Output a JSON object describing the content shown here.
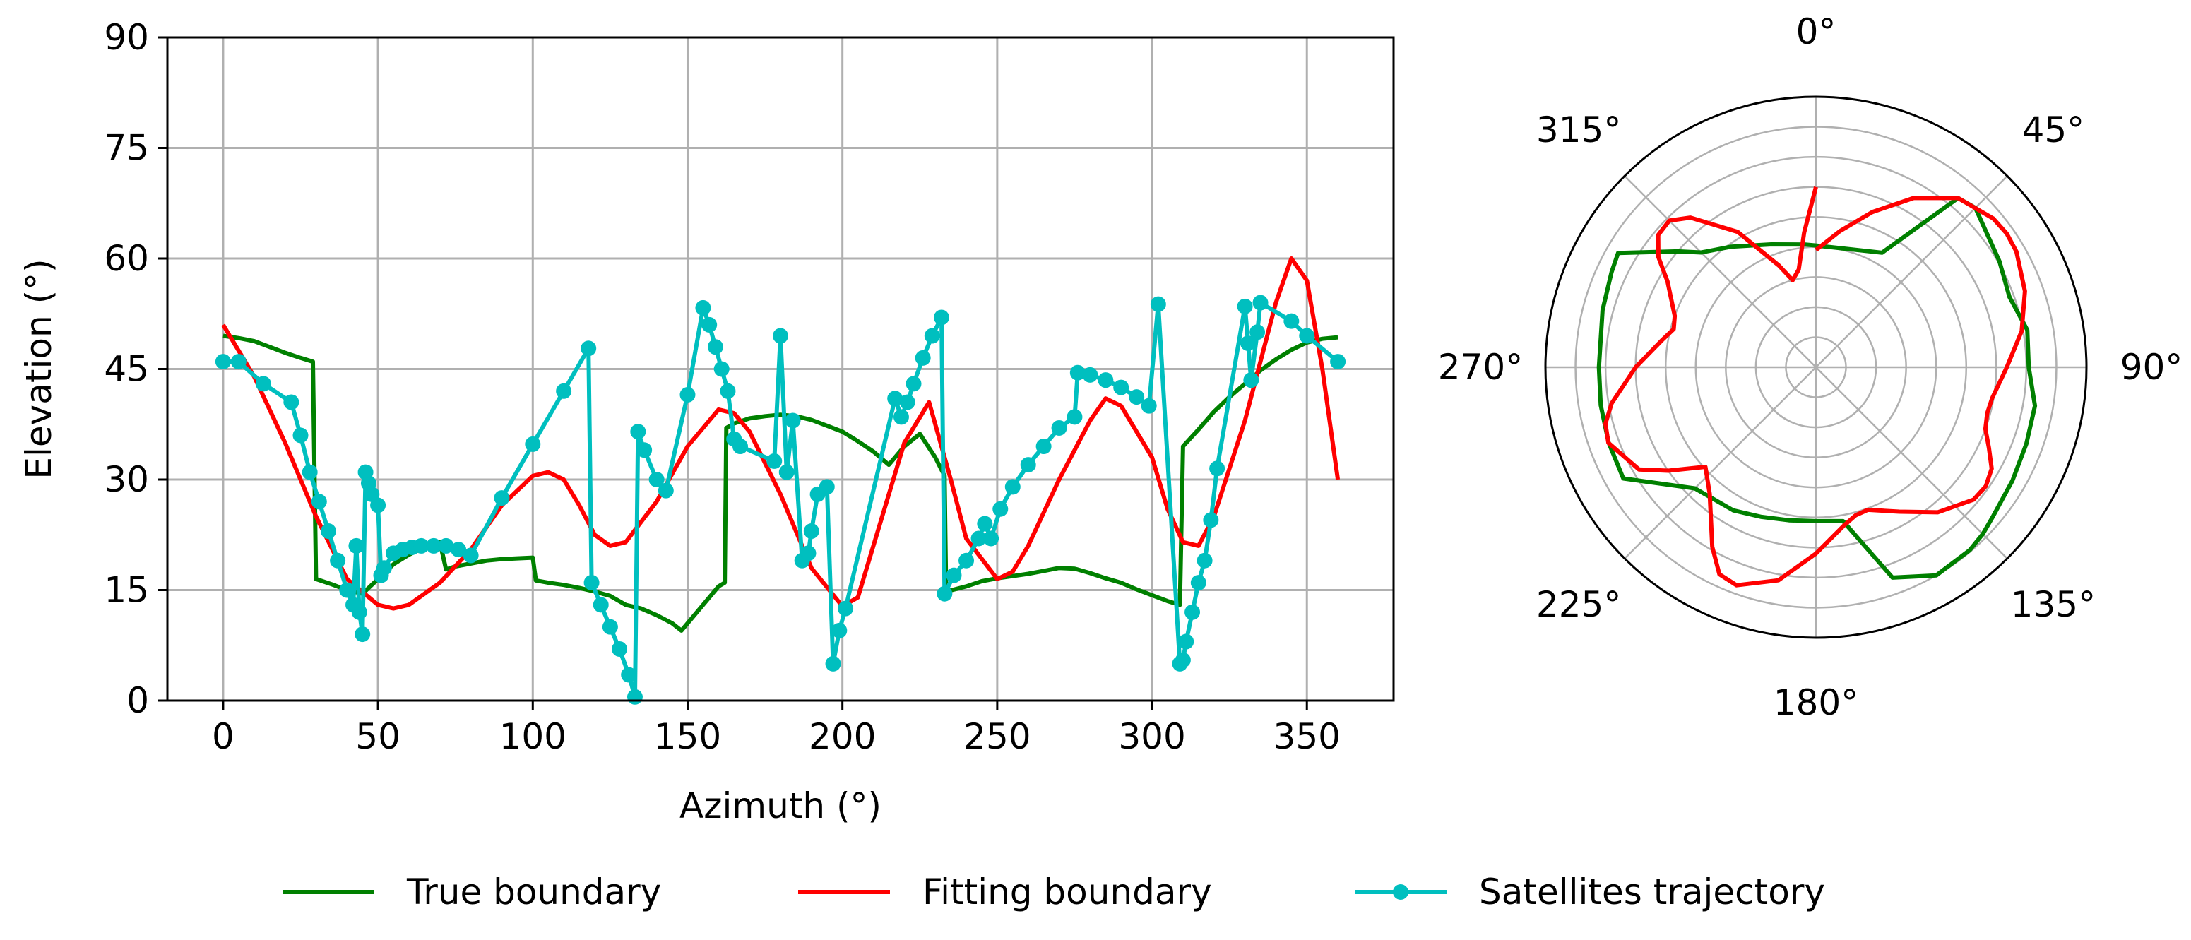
{
  "colors": {
    "true_boundary": "#008000",
    "fitting_boundary": "#ff0000",
    "satellites_trajectory": "#00bfbf",
    "grid": "#b0b0b0",
    "axes": "#000000"
  },
  "legend": {
    "placement": "bottom-center",
    "items": [
      {
        "label": "True boundary",
        "series": "true_boundary"
      },
      {
        "label": "Fitting boundary",
        "series": "fitting_boundary"
      },
      {
        "label": "Satellites trajectory",
        "series": "satellites_trajectory"
      }
    ]
  },
  "chart_data": [
    {
      "type": "line",
      "xlabel": "Azimuth (°)",
      "ylabel": "Elevation (°)",
      "xlim": [
        -18,
        378
      ],
      "ylim": [
        0,
        90
      ],
      "grid": true,
      "x_ticks": [
        0,
        50,
        100,
        150,
        200,
        250,
        300,
        350
      ],
      "x_tick_labels": [
        "0",
        "50",
        "100",
        "150",
        "200",
        "250",
        "300",
        "350"
      ],
      "y_ticks": [
        0,
        15,
        30,
        45,
        60,
        75,
        90
      ],
      "y_tick_labels": [
        "0",
        "15",
        "30",
        "45",
        "60",
        "75",
        "90"
      ],
      "series": [
        {
          "key": "true_boundary",
          "name": "True boundary",
          "x": [
            0,
            5,
            10,
            15,
            20,
            25,
            29,
            30,
            35,
            40,
            45,
            50,
            55,
            60,
            65,
            70,
            72,
            75,
            80,
            85,
            90,
            95,
            100,
            101,
            105,
            110,
            115,
            120,
            125,
            130,
            135,
            140,
            145,
            148,
            150,
            155,
            160,
            162,
            162.5,
            165,
            170,
            175,
            180,
            185,
            190,
            195,
            200,
            205,
            210,
            215,
            220,
            225,
            230,
            233,
            233.5,
            240,
            245,
            250,
            255,
            260,
            265,
            270,
            275,
            280,
            285,
            290,
            295,
            300,
            305,
            309,
            310,
            315,
            320,
            325,
            330,
            335,
            340,
            345,
            350,
            355,
            360
          ],
          "y": [
            49.5,
            49.2,
            48.8,
            48,
            47.2,
            46.5,
            46,
            16.5,
            15.8,
            15,
            14.5,
            16.5,
            18.5,
            19.8,
            20.8,
            21.5,
            17.8,
            18.2,
            18.6,
            19,
            19.2,
            19.3,
            19.4,
            16.3,
            16,
            15.7,
            15.3,
            14.8,
            14.2,
            13,
            12.5,
            11.6,
            10.5,
            9.5,
            10.5,
            13,
            15.5,
            16,
            37,
            37.6,
            38.3,
            38.6,
            38.8,
            38.6,
            38.1,
            37.3,
            36.5,
            35.2,
            33.8,
            32,
            34.5,
            36.2,
            33,
            30.5,
            14.8,
            15.5,
            16.2,
            16.6,
            16.9,
            17.2,
            17.6,
            18,
            17.9,
            17.3,
            16.6,
            16,
            15.1,
            14.3,
            13.5,
            13,
            34.5,
            36.8,
            39.2,
            41.2,
            43,
            44.8,
            46.3,
            47.6,
            48.6,
            49.1,
            49.3
          ]
        },
        {
          "key": "fitting_boundary",
          "name": "Fitting boundary",
          "x": [
            0,
            10,
            20,
            30,
            40,
            50,
            55,
            60,
            70,
            80,
            90,
            100,
            105,
            110,
            115,
            120,
            125,
            130,
            140,
            150,
            160,
            165,
            170,
            180,
            190,
            200,
            205,
            210,
            220,
            228,
            235,
            240,
            250,
            255,
            260,
            270,
            280,
            285,
            290,
            300,
            305,
            310,
            315,
            320,
            330,
            340,
            345,
            350,
            355,
            360
          ],
          "y": [
            51,
            44,
            35,
            25,
            16.5,
            13,
            12.5,
            13,
            16,
            20.5,
            26.5,
            30.5,
            31,
            30,
            26.5,
            22.5,
            21,
            21.5,
            27,
            34.5,
            39.5,
            39,
            36.5,
            28,
            18,
            12.8,
            14,
            21,
            35,
            40.5,
            30,
            22,
            16.5,
            17.5,
            21,
            30,
            38,
            41,
            40,
            33,
            26,
            21.5,
            21,
            25,
            38,
            54,
            60,
            57,
            45,
            30
          ]
        },
        {
          "key": "satellites_trajectory",
          "name": "Satellites trajectory",
          "markers": true,
          "x": [
            0,
            5,
            13,
            22,
            25,
            28,
            31,
            34,
            37,
            40,
            42,
            43,
            44,
            45,
            46,
            47,
            48,
            50,
            51,
            52,
            55,
            58,
            61,
            64,
            68,
            72,
            76,
            80,
            90,
            100,
            110,
            118,
            119,
            122,
            125,
            128,
            131,
            133,
            134,
            136,
            140,
            143,
            150,
            155,
            157,
            159,
            161,
            163,
            165,
            167,
            178,
            180,
            182,
            184,
            187,
            189,
            190,
            192,
            195,
            197,
            199,
            201,
            217,
            219,
            221,
            223,
            226,
            229,
            232,
            233,
            236,
            240,
            244,
            246,
            248,
            251,
            255,
            260,
            265,
            270,
            275,
            276,
            280,
            285,
            290,
            295,
            299,
            302,
            309,
            310,
            311,
            313,
            315,
            317,
            319,
            321,
            330,
            331,
            332,
            334,
            335,
            345,
            350,
            360
          ],
          "y": [
            46,
            46,
            43,
            40.5,
            36,
            31,
            27,
            23,
            19,
            15,
            13,
            21,
            12,
            9,
            31,
            29.5,
            28,
            26.5,
            17,
            18,
            20,
            20.5,
            20.8,
            21,
            21,
            21,
            20.5,
            19.7,
            27.5,
            34.8,
            42,
            47.8,
            16,
            13,
            10,
            7,
            3.5,
            0.5,
            36.5,
            34,
            30,
            28.5,
            41.5,
            53.3,
            51,
            48,
            45,
            42,
            35.5,
            34.5,
            32.5,
            49.5,
            31,
            38,
            19,
            20,
            23,
            28,
            29,
            5,
            9.5,
            12.5,
            41,
            38.5,
            40.5,
            43,
            46.5,
            49.5,
            52,
            14.5,
            17,
            19,
            22,
            24,
            22,
            26,
            29,
            32,
            34.5,
            37,
            38.5,
            44.5,
            44.2,
            43.5,
            42.5,
            41.2,
            40,
            53.8,
            5,
            5.5,
            8,
            12,
            16,
            19,
            24.5,
            31.5,
            53.5,
            48.5,
            43.5,
            50,
            54,
            51.5,
            49.5,
            46
          ]
        }
      ]
    },
    {
      "type": "polar-line",
      "theta_ticks": [
        0,
        45,
        90,
        135,
        180,
        225,
        270,
        315
      ],
      "theta_tick_labels": [
        "0°",
        "45°",
        "90°",
        "135°",
        "180°",
        "225°",
        "270°",
        "315°"
      ],
      "theta_direction": "clockwise",
      "theta_zero": "top",
      "rlim": [
        90,
        0
      ],
      "radial_grid_elevations": [
        80,
        70,
        60,
        50,
        40,
        30,
        20,
        10,
        0
      ],
      "grid": true,
      "series": [
        {
          "key": "true_boundary",
          "name": "True boundary",
          "theta": [
            0,
            30,
            40,
            45,
            60,
            70,
            80,
            90,
            100,
            110,
            120,
            130,
            135,
            140,
            150,
            160,
            170,
            180,
            190,
            200,
            210,
            225,
            240,
            250,
            260,
            270,
            285,
            295,
            300,
            310,
            315,
            325,
            340,
            355,
            360
          ],
          "elevation": [
            49.5,
            46,
            16.5,
            15,
            19.5,
            21.5,
            18.6,
            19.2,
            16,
            15.5,
            14.5,
            13,
            11.5,
            10.5,
            10,
            15.5,
            38,
            38.8,
            38.3,
            37,
            35,
            33,
            16,
            16.6,
            17.3,
            17.8,
            16.5,
            15,
            14,
            30,
            36,
            41,
            46.5,
            49,
            49.5
          ]
        },
        {
          "key": "fitting_boundary",
          "name": "Fitting boundary",
          "theta": [
            0,
            10,
            20,
            30,
            40,
            50,
            55,
            60,
            70,
            80,
            90,
            100,
            105,
            110,
            115,
            120,
            125,
            130,
            140,
            150,
            160,
            165,
            170,
            180,
            190,
            200,
            205,
            210,
            220,
            228,
            235,
            240,
            250,
            255,
            260,
            270,
            280,
            285,
            290,
            300,
            305,
            310,
            315,
            320,
            330,
            340,
            345,
            350,
            355,
            360
          ],
          "elevation": [
            51,
            44,
            35,
            25,
            16.5,
            13,
            12.5,
            13,
            16,
            20.5,
            26.5,
            30.5,
            31,
            30,
            26.5,
            22.5,
            21,
            21.5,
            27,
            34.5,
            39.5,
            39,
            36.5,
            28,
            18,
            12.8,
            14,
            21,
            35,
            40.5,
            30,
            22,
            16.5,
            17.5,
            21,
            30,
            38,
            41,
            40,
            33,
            26,
            21.5,
            21,
            25,
            38,
            54,
            60,
            57,
            45,
            30
          ]
        }
      ]
    }
  ]
}
